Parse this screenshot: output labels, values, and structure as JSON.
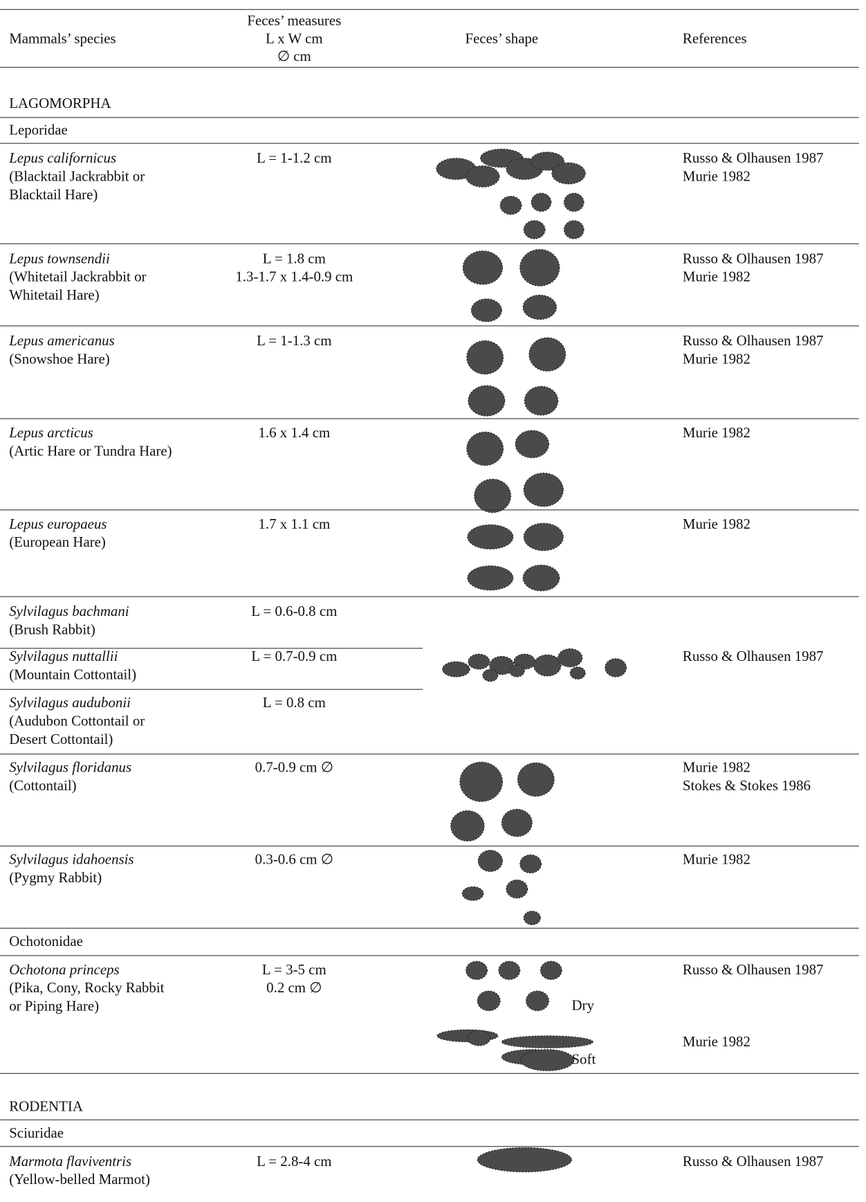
{
  "header": {
    "species": "Mammals’ species",
    "measures": [
      "Feces’ measures",
      "L x W cm",
      "∅ cm"
    ],
    "shape": "Feces’  shape",
    "references": "References"
  },
  "sections": [
    {
      "order": "LAGOMORPHA",
      "families": [
        {
          "name": "Leporidae",
          "rows": [
            {
              "species": "Lepus californicus",
              "common": [
                "(Blacktail Jackrabbit or",
                "Blacktail Hare)"
              ],
              "measures": [
                "L = 1-1.2 cm"
              ],
              "references": [
                "Russo & Olhausen 1987",
                "Murie 1982"
              ]
            },
            {
              "species": "Lepus townsendii",
              "common": [
                "(Whitetail Jackrabbit or",
                "Whitetail Hare)"
              ],
              "measures": [
                "L = 1.8 cm",
                "1.3-1.7 x 1.4-0.9 cm"
              ],
              "references": [
                "Russo & Olhausen 1987",
                "Murie 1982"
              ]
            },
            {
              "species": "Lepus americanus",
              "common": [
                "(Snowshoe Hare)"
              ],
              "measures": [
                "L = 1-1.3 cm"
              ],
              "references": [
                "Russo & Olhausen 1987",
                "Murie 1982"
              ]
            },
            {
              "species": "Lepus arcticus",
              "common": [
                "(Artic Hare or Tundra Hare)"
              ],
              "measures": [
                "1.6 x 1.4 cm"
              ],
              "references": [
                "Murie 1982"
              ]
            },
            {
              "species": "Lepus europaeus",
              "common": [
                "(European Hare)"
              ],
              "measures": [
                "1.7 x 1.1 cm"
              ],
              "references": [
                "Murie 1982"
              ]
            },
            {
              "species": "Sylvilagus bachmani",
              "common": [
                "(Brush Rabbit)"
              ],
              "measures": [
                "L = 0.6-0.8 cm"
              ]
            },
            {
              "species": "Sylvilagus nuttallii",
              "common": [
                "(Mountain  Cottontail)"
              ],
              "measures": [
                "L = 0.7-0.9 cm"
              ],
              "references": [
                "Russo & Olhausen 1987"
              ]
            },
            {
              "species": "Sylvilagus audubonii",
              "common": [
                "(Audubon Cottontail or",
                "Desert Cottontail)"
              ],
              "measures": [
                "L = 0.8 cm"
              ]
            },
            {
              "species": "Sylvilagus floridanus",
              "common": [
                "(Cottontail)"
              ],
              "measures": [
                "0.7-0.9 cm ∅"
              ],
              "references": [
                "Murie 1982",
                "Stokes & Stokes 1986"
              ]
            },
            {
              "species": "Sylvilagus idahoensis",
              "common": [
                "(Pygmy Rabbit)"
              ],
              "measures": [
                "0.3-0.6 cm ∅"
              ],
              "references": [
                "Murie 1982"
              ]
            }
          ]
        },
        {
          "name": "Ochotonidae",
          "rows": [
            {
              "species": "Ochotona princeps",
              "common": [
                "(Pika, Cony, Rocky Rabbit",
                "or Piping Hare)"
              ],
              "measures": [
                "L = 3-5 cm",
                "0.2 cm ∅"
              ],
              "shape_labels": [
                "Dry",
                "Soft"
              ],
              "references": [
                "Russo & Olhausen 1987",
                "Murie 1982"
              ]
            }
          ]
        }
      ]
    },
    {
      "order": "RODENTIA",
      "families": [
        {
          "name": "Sciuridae",
          "rows": [
            {
              "species": "Marmota flaviventris",
              "common": [
                "(Yellow-belled Marmot)"
              ],
              "measures": [
                "L = 2.8-4 cm"
              ],
              "references": [
                "Russo & Olhausen 1987"
              ]
            }
          ]
        }
      ]
    }
  ]
}
